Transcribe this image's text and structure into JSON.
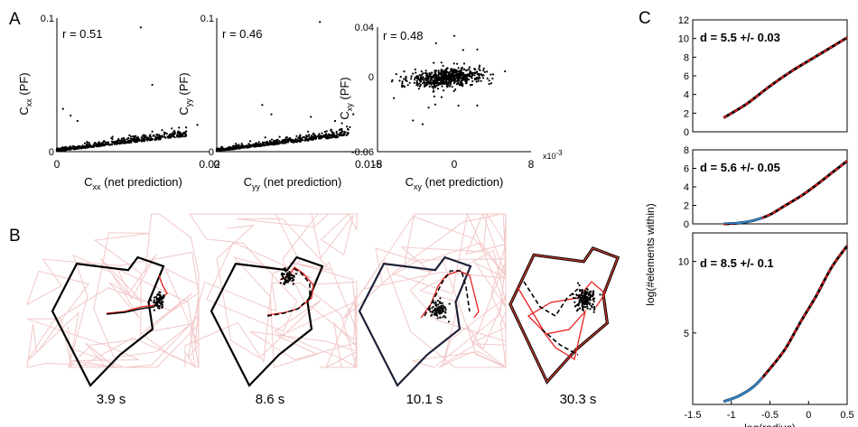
{
  "panel_labels": {
    "a": "A",
    "b": "B",
    "c": "C"
  },
  "colors": {
    "trace_pink": "#f2c8c8",
    "trace_red": "#e8211f",
    "fit_red": "#e31a1c",
    "fit_blue": "#2f7fc1",
    "point_black": "#000000",
    "box_navy": "#1e2238"
  },
  "chart_data": [
    {
      "panel": "A1",
      "type": "scatter",
      "annotation": "r = 0.51",
      "xlabel_main": "C",
      "xlabel_sub": "xx",
      "xlabel_rest": " (net prediction)",
      "ylabel_main": "C",
      "ylabel_sub": "xx",
      "ylabel_rest": " (PF)",
      "xlim": [
        0,
        0.02
      ],
      "ylim": [
        0,
        0.1
      ],
      "xticklabels": [
        "0",
        "0.02"
      ],
      "yticklabels": [
        "0",
        "0.1"
      ],
      "n_points": 700,
      "r": 0.51,
      "outliers": [
        [
          0.011,
          0.093
        ],
        [
          0.0125,
          0.05
        ],
        [
          0.0008,
          0.032
        ],
        [
          0.0018,
          0.027
        ],
        [
          0.0027,
          0.023
        ],
        [
          0.016,
          0.018
        ],
        [
          0.0184,
          0.02
        ]
      ]
    },
    {
      "panel": "A2",
      "type": "scatter",
      "annotation": "r = 0.46",
      "xlabel_main": "C",
      "xlabel_sub": "yy",
      "xlabel_rest": " (net prediction)",
      "ylabel_main": "C",
      "ylabel_sub": "yy",
      "ylabel_rest": " (PF)",
      "xlim": [
        0,
        0.015
      ],
      "ylim": [
        0,
        0.1
      ],
      "xticklabels": [
        "0",
        "0.015"
      ],
      "yticklabels": [
        "0",
        "0.1"
      ],
      "n_points": 700,
      "r": 0.46,
      "outliers": [
        [
          0.0102,
          0.097
        ],
        [
          0.0045,
          0.035
        ],
        [
          0.0054,
          0.028
        ],
        [
          0.0093,
          0.026
        ],
        [
          0.0117,
          0.023
        ],
        [
          0.0135,
          0.028
        ]
      ]
    },
    {
      "panel": "A3",
      "type": "scatter",
      "annotation": "r = 0.48",
      "xlabel_main": "C",
      "xlabel_sub": "xy",
      "xlabel_rest": " (net prediction)",
      "ylabel_main": "C",
      "ylabel_sub": "xy",
      "ylabel_rest": " (PF)",
      "xlim": [
        -8,
        8
      ],
      "ylim": [
        -0.06,
        0.04
      ],
      "xticklabels": [
        "-8",
        "0",
        "8"
      ],
      "yticklabels": [
        "-0.06",
        "0",
        "0.04"
      ],
      "x_exponent": "x10",
      "x_exponent_power": "-3",
      "n_points": 650,
      "r": 0.48,
      "outliers": [
        [
          0,
          0.033
        ],
        [
          -1.9,
          0.027
        ],
        [
          2.4,
          0.022
        ],
        [
          -4.3,
          -0.035
        ],
        [
          -3.3,
          -0.038
        ],
        [
          2.4,
          -0.023
        ],
        [
          -6.3,
          -0.017
        ]
      ]
    },
    {
      "panel": "C1",
      "type": "line",
      "annotation": "d = 5.5 +/- 0.03",
      "xlim": [
        -1.5,
        0.5
      ],
      "ylim": [
        0,
        12
      ],
      "yticks": [
        0,
        2,
        4,
        6,
        8,
        10,
        12
      ],
      "series": [
        {
          "x": [
            -1.1,
            -0.8,
            -0.5,
            -0.2,
            0.1,
            0.5
          ],
          "y": [
            1.5,
            3.0,
            4.9,
            6.6,
            8.1,
            10.1
          ]
        }
      ]
    },
    {
      "panel": "C2",
      "type": "line",
      "annotation": "d = 5.6 +/- 0.05",
      "xlim": [
        -1.5,
        0.5
      ],
      "ylim": [
        0,
        8
      ],
      "yticks": [
        0,
        2,
        4,
        6,
        8
      ],
      "series": [
        {
          "x": [
            -1.1,
            -0.9,
            -0.7,
            -0.5,
            -0.3,
            -0.1,
            0.1,
            0.3,
            0.5
          ],
          "y": [
            0.0,
            0.1,
            0.4,
            1.0,
            2.0,
            3.0,
            4.2,
            5.5,
            6.8
          ]
        }
      ]
    },
    {
      "panel": "C3",
      "type": "line",
      "annotation": "d = 8.5 +/- 0.1",
      "xlim": [
        -1.5,
        0.5
      ],
      "ylim": [
        0,
        12
      ],
      "yticks": [
        5,
        10
      ],
      "xticks": [
        -1.5,
        -1,
        -0.5,
        0,
        0.5
      ],
      "xticklabels": [
        "-1.5",
        "-1",
        "-0.5",
        "0",
        "0.5"
      ],
      "xlabel": "log(radius)",
      "series": [
        {
          "x": [
            -1.1,
            -0.9,
            -0.7,
            -0.5,
            -0.3,
            -0.1,
            0.1,
            0.3,
            0.5
          ],
          "y": [
            0.2,
            0.6,
            1.3,
            2.5,
            3.9,
            5.8,
            7.6,
            9.6,
            11.1
          ]
        }
      ]
    }
  ],
  "panel_c_ylabel": "log(#elements within)",
  "panel_b": {
    "times": [
      "3.9 s",
      "8.6 s",
      "10.1 s",
      "30.3 s"
    ]
  }
}
